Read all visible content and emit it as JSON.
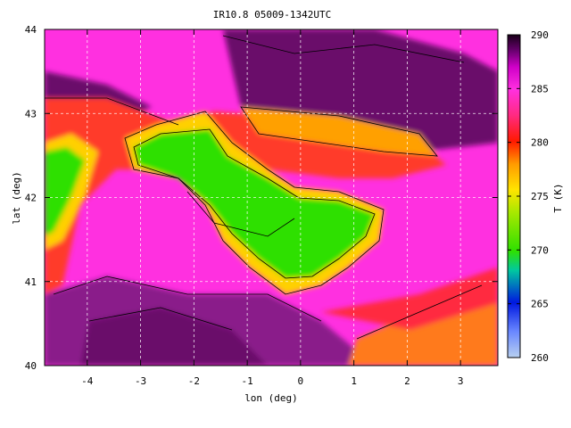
{
  "chart_data": {
    "type": "heatmap",
    "title": "IR10.8 05009-1342UTC",
    "xlabel": "lon (deg)",
    "ylabel": "lat (deg)",
    "xlim": [
      -4.8,
      3.7
    ],
    "ylim": [
      40,
      44
    ],
    "x_ticks": [
      -4,
      -3,
      -2,
      -1,
      0,
      1,
      2,
      3
    ],
    "y_ticks": [
      40,
      41,
      42,
      43,
      44
    ],
    "grid": true,
    "colorbar": {
      "label": "T (K)",
      "range": [
        260,
        290
      ],
      "ticks": [
        260,
        265,
        270,
        275,
        280,
        285,
        290
      ]
    },
    "regions": [
      {
        "name": "background",
        "value": 286
      },
      {
        "name": "warm-plain-northwest",
        "value": 281
      },
      {
        "name": "cold-cloud-band-north",
        "value": 279
      },
      {
        "name": "cold-cloud-main",
        "value": 270
      },
      {
        "name": "cold-cloud-west",
        "value": 271
      },
      {
        "name": "dark-south",
        "value": 289
      },
      {
        "name": "dark-northeast",
        "value": 289
      },
      {
        "name": "warm-southeast-coast",
        "value": 279
      }
    ]
  }
}
